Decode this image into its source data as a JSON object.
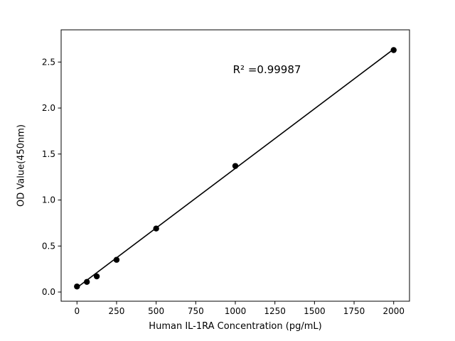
{
  "chart_data": {
    "type": "scatter",
    "title": "",
    "xlabel": "Human IL-1RA Concentration (pg/mL)",
    "ylabel": "OD Value(450nm)",
    "annotation": {
      "text": "R² =0.99987",
      "x": 1200,
      "y": 2.42
    },
    "x": [
      0,
      62.5,
      125,
      250,
      500,
      1000,
      2000
    ],
    "y": [
      0.06,
      0.11,
      0.17,
      0.35,
      0.69,
      1.37,
      2.63
    ],
    "fit_line": {
      "x": [
        0,
        2000
      ],
      "y": [
        0.048,
        2.64
      ]
    },
    "xlim": [
      -100,
      2100
    ],
    "ylim": [
      -0.1,
      2.85
    ],
    "xticks": [
      0,
      250,
      500,
      750,
      1000,
      1250,
      1500,
      1750,
      2000
    ],
    "yticks": [
      0.0,
      0.5,
      1.0,
      1.5,
      2.0,
      2.5
    ],
    "grid": false,
    "legend": null,
    "line_color": "#000000",
    "marker_color": "#000000",
    "background_color": "#ffffff"
  }
}
